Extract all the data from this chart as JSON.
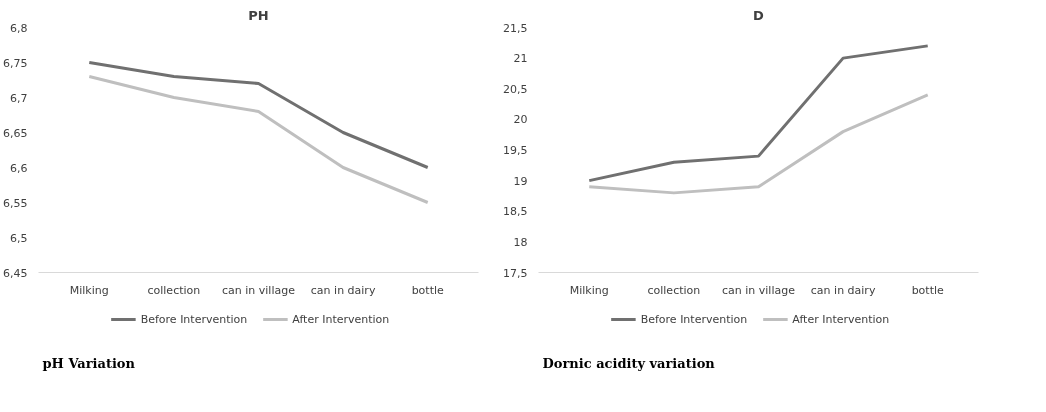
{
  "chart_data": [
    {
      "type": "line",
      "title": "PH",
      "categories": [
        "Milking",
        "collection",
        "can in village",
        "can in dairy",
        "bottle"
      ],
      "series": [
        {
          "name": "Before Intervention",
          "color": "#707070",
          "values": [
            6.75,
            6.73,
            6.72,
            6.65,
            6.6
          ]
        },
        {
          "name": "After Intervention",
          "color": "#bfbfbf",
          "values": [
            6.73,
            6.7,
            6.68,
            6.6,
            6.55
          ]
        }
      ],
      "ylim": [
        6.45,
        6.8
      ],
      "yticks": [
        {
          "value": 6.45,
          "label": "6,45"
        },
        {
          "value": 6.5,
          "label": "6,5"
        },
        {
          "value": 6.55,
          "label": "6,55"
        },
        {
          "value": 6.6,
          "label": "6,6"
        },
        {
          "value": 6.65,
          "label": "6,65"
        },
        {
          "value": 6.7,
          "label": "6,7"
        },
        {
          "value": 6.75,
          "label": "6,75"
        },
        {
          "value": 6.8,
          "label": "6,8"
        }
      ],
      "grid": false,
      "legend": "bottom",
      "marker": "none",
      "line_style": "solid",
      "annotations": [
        "pH Variation"
      ]
    },
    {
      "type": "line",
      "title": "D",
      "categories": [
        "Milking",
        "collection",
        "can in village",
        "can in dairy",
        "bottle"
      ],
      "series": [
        {
          "name": "Before Intervention",
          "color": "#707070",
          "values": [
            19.0,
            19.3,
            19.4,
            21.0,
            21.2
          ]
        },
        {
          "name": "After Intervention",
          "color": "#bfbfbf",
          "values": [
            18.9,
            18.8,
            18.9,
            19.8,
            20.4
          ]
        }
      ],
      "ylim": [
        17.5,
        21.5
      ],
      "yticks": [
        {
          "value": 17.5,
          "label": "17,5"
        },
        {
          "value": 18,
          "label": "18"
        },
        {
          "value": 18.5,
          "label": "18,5"
        },
        {
          "value": 19,
          "label": "19"
        },
        {
          "value": 19.5,
          "label": "19,5"
        },
        {
          "value": 20,
          "label": "20"
        },
        {
          "value": 20.5,
          "label": "20,5"
        },
        {
          "value": 21,
          "label": "21"
        },
        {
          "value": 21.5,
          "label": "21,5"
        }
      ],
      "grid": false,
      "legend": "bottom",
      "marker": "none",
      "line_style": "solid",
      "annotations": [
        "Dornic acidity variation"
      ]
    }
  ]
}
